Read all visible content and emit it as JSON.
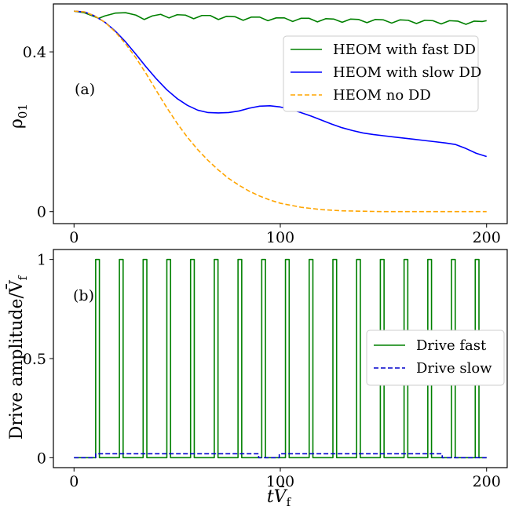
{
  "chart_data": [
    {
      "type": "line",
      "panel_label": "(a)",
      "xlabel": "",
      "ylabel": "ρ",
      "ylabel_sub": "01",
      "xlim": [
        -10,
        210
      ],
      "ylim": [
        -0.03,
        0.52
      ],
      "xticks": [
        0,
        100,
        200
      ],
      "xtick_labels": [
        "0",
        "100",
        "200"
      ],
      "yticks": [
        0,
        0.4
      ],
      "ytick_labels": [
        "0",
        "0.4"
      ],
      "grid": false,
      "legend_position": "upper-right",
      "series": [
        {
          "name": "HEOM with fast DD",
          "color": "#008000",
          "dash": "solid",
          "x": [
            0,
            5,
            10,
            12,
            15,
            20,
            25,
            30,
            34,
            38,
            42,
            46,
            50,
            54,
            58,
            62,
            66,
            70,
            74,
            78,
            82,
            86,
            90,
            94,
            98,
            102,
            106,
            110,
            114,
            118,
            122,
            126,
            130,
            134,
            138,
            142,
            146,
            150,
            154,
            158,
            162,
            166,
            170,
            174,
            178,
            182,
            186,
            190,
            194,
            198,
            200
          ],
          "y": [
            0.502,
            0.498,
            0.488,
            0.484,
            0.49,
            0.497,
            0.498,
            0.492,
            0.481,
            0.49,
            0.494,
            0.485,
            0.493,
            0.492,
            0.483,
            0.491,
            0.491,
            0.481,
            0.489,
            0.488,
            0.479,
            0.487,
            0.487,
            0.478,
            0.485,
            0.485,
            0.476,
            0.484,
            0.484,
            0.475,
            0.483,
            0.482,
            0.474,
            0.482,
            0.481,
            0.473,
            0.481,
            0.48,
            0.472,
            0.48,
            0.479,
            0.471,
            0.479,
            0.478,
            0.47,
            0.478,
            0.477,
            0.469,
            0.477,
            0.476,
            0.478
          ]
        },
        {
          "name": "HEOM with slow DD",
          "color": "#0000ff",
          "dash": "solid",
          "x": [
            0,
            5,
            10,
            15,
            20,
            25,
            30,
            35,
            40,
            45,
            50,
            55,
            60,
            65,
            70,
            75,
            80,
            85,
            90,
            95,
            100,
            105,
            110,
            115,
            120,
            125,
            130,
            135,
            140,
            145,
            150,
            155,
            160,
            165,
            170,
            175,
            180,
            185,
            190,
            195,
            200
          ],
          "y": [
            0.502,
            0.5,
            0.49,
            0.474,
            0.452,
            0.425,
            0.394,
            0.362,
            0.332,
            0.305,
            0.283,
            0.266,
            0.254,
            0.248,
            0.247,
            0.248,
            0.252,
            0.259,
            0.264,
            0.265,
            0.262,
            0.256,
            0.248,
            0.239,
            0.229,
            0.219,
            0.21,
            0.203,
            0.197,
            0.193,
            0.19,
            0.187,
            0.184,
            0.181,
            0.178,
            0.175,
            0.172,
            0.168,
            0.158,
            0.146,
            0.138
          ]
        },
        {
          "name": "HEOM no DD",
          "color": "#ffa500",
          "dash": "dashed",
          "x": [
            0,
            5,
            10,
            15,
            20,
            25,
            30,
            35,
            40,
            45,
            50,
            55,
            60,
            65,
            70,
            75,
            80,
            85,
            90,
            95,
            100,
            110,
            120,
            130,
            140,
            150,
            160,
            170,
            180,
            190,
            200
          ],
          "y": [
            0.502,
            0.5,
            0.49,
            0.474,
            0.45,
            0.42,
            0.385,
            0.345,
            0.302,
            0.26,
            0.221,
            0.186,
            0.155,
            0.128,
            0.104,
            0.083,
            0.066,
            0.051,
            0.039,
            0.029,
            0.021,
            0.011,
            0.005,
            0.002,
            0.001,
            0.0,
            0.0,
            0.0,
            0.0,
            0.0,
            0.0
          ]
        }
      ]
    },
    {
      "type": "line",
      "panel_label": "(b)",
      "xlabel": "tV̄",
      "xlabel_sub": "f",
      "ylabel": "Drive amplitude/V̄",
      "ylabel_sub": "f",
      "xlim": [
        -10,
        210
      ],
      "ylim": [
        -0.05,
        1.05
      ],
      "xticks": [
        0,
        100,
        200
      ],
      "xtick_labels": [
        "0",
        "100",
        "200"
      ],
      "yticks": [
        0,
        0.5,
        1
      ],
      "ytick_labels": [
        "0",
        "0.5",
        "1"
      ],
      "grid": false,
      "legend_position": "center-right",
      "series": [
        {
          "name": "Drive fast",
          "color": "#008000",
          "dash": "solid",
          "pulse_starts": [
            10.5,
            22,
            33.5,
            45,
            56.5,
            68,
            79.5,
            91,
            102.5,
            114,
            125.5,
            137,
            148.5,
            160,
            171.5,
            183,
            194.5
          ],
          "pulse_width": 1.8,
          "low": 0,
          "high": 1
        },
        {
          "name": "Drive slow",
          "color": "#0000cc",
          "dash": "dashed",
          "x": [
            0,
            10.5,
            10.5,
            89.5,
            89.5,
            99.5,
            99.5,
            178.5,
            178.5,
            200
          ],
          "y": [
            0,
            0,
            0.02,
            0.02,
            0,
            0,
            0.02,
            0.02,
            0,
            0
          ]
        }
      ]
    }
  ]
}
